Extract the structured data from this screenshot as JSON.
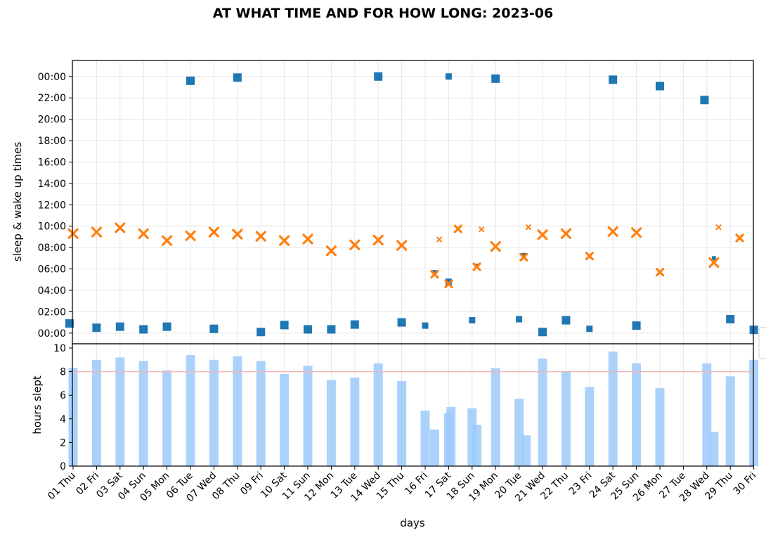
{
  "chart_data": {
    "title": "AT WHAT TIME AND FOR HOW LONG: 2023-06",
    "xlabel": "days",
    "x_categories": [
      "01 Thu",
      "02 Fri",
      "03 Sat",
      "04 Sun",
      "05 Mon",
      "06 Tue",
      "07 Wed",
      "08 Thu",
      "09 Fri",
      "10 Sat",
      "11 Sun",
      "12 Mon",
      "13 Tue",
      "14 Wed",
      "15 Thu",
      "16 Fri",
      "17 Sat",
      "18 Sun",
      "19 Mon",
      "20 Tue",
      "21 Wed",
      "22 Thu",
      "23 Fri",
      "24 Sat",
      "25 Sun",
      "26 Mon",
      "27 Tue",
      "28 Wed",
      "29 Thu",
      "30 Fri"
    ],
    "colors": {
      "sleep": "#1f77b4",
      "wake": "#ff7f0e",
      "bars": "#9ccafa",
      "bars_dark": "#6ab3f7",
      "target_line": "#f5b5b5",
      "grid": "#e6e6e6"
    },
    "top": {
      "type": "scatter",
      "ylabel": "sleep & wake up times",
      "yticks": [
        "00:00",
        "02:00",
        "04:00",
        "06:00",
        "08:00",
        "10:00",
        "12:00",
        "14:00",
        "16:00",
        "18:00",
        "20:00",
        "22:00",
        "00:00"
      ],
      "ylim_hours": [
        -1,
        25.5
      ],
      "grid": true,
      "sleep_points": [
        {
          "x": 0.85,
          "y": 0.9,
          "size": "large"
        },
        {
          "x": 2.0,
          "y": 0.5,
          "size": "large"
        },
        {
          "x": 3.0,
          "y": 0.6,
          "size": "large"
        },
        {
          "x": 4.0,
          "y": 0.35,
          "size": "large"
        },
        {
          "x": 5.0,
          "y": 0.6,
          "size": "large"
        },
        {
          "x": 6.0,
          "y": 23.6,
          "size": "large"
        },
        {
          "x": 7.0,
          "y": 0.4,
          "size": "large"
        },
        {
          "x": 8.0,
          "y": 23.9,
          "size": "large"
        },
        {
          "x": 9.0,
          "y": 0.1,
          "size": "large"
        },
        {
          "x": 10.0,
          "y": 0.75,
          "size": "large"
        },
        {
          "x": 11.0,
          "y": 0.35,
          "size": "large"
        },
        {
          "x": 12.0,
          "y": 0.35,
          "size": "large"
        },
        {
          "x": 13.0,
          "y": 0.8,
          "size": "large"
        },
        {
          "x": 14.0,
          "y": 24.0,
          "size": "large"
        },
        {
          "x": 15.0,
          "y": 1.0,
          "size": "large"
        },
        {
          "x": 16.0,
          "y": 0.7,
          "size": "medium"
        },
        {
          "x": 16.4,
          "y": 5.7,
          "size": "small"
        },
        {
          "x": 17.0,
          "y": 4.8,
          "size": "medium"
        },
        {
          "x": 17.0,
          "y": 24.0,
          "size": "medium"
        },
        {
          "x": 18.0,
          "y": 1.2,
          "size": "medium"
        },
        {
          "x": 18.2,
          "y": 6.3,
          "size": "small"
        },
        {
          "x": 19.0,
          "y": 23.8,
          "size": "large"
        },
        {
          "x": 20.0,
          "y": 1.3,
          "size": "medium"
        },
        {
          "x": 20.2,
          "y": 7.3,
          "size": "small"
        },
        {
          "x": 21.0,
          "y": 0.1,
          "size": "large"
        },
        {
          "x": 22.0,
          "y": 1.2,
          "size": "large"
        },
        {
          "x": 23.0,
          "y": 0.4,
          "size": "medium"
        },
        {
          "x": 24.0,
          "y": 23.7,
          "size": "large"
        },
        {
          "x": 25.0,
          "y": 0.7,
          "size": "large"
        },
        {
          "x": 26.0,
          "y": 23.1,
          "size": "large"
        },
        {
          "x": 27.9,
          "y": 21.8,
          "size": "large"
        },
        {
          "x": 28.3,
          "y": 7.0,
          "size": "small"
        },
        {
          "x": 29.0,
          "y": 1.3,
          "size": "large"
        },
        {
          "x": 30.0,
          "y": 0.3,
          "size": "large"
        }
      ],
      "wake_points": [
        {
          "x": 1.0,
          "y": 9.3,
          "size": "large"
        },
        {
          "x": 2.0,
          "y": 9.45,
          "size": "large"
        },
        {
          "x": 3.0,
          "y": 9.85,
          "size": "large"
        },
        {
          "x": 4.0,
          "y": 9.3,
          "size": "large"
        },
        {
          "x": 5.0,
          "y": 8.65,
          "size": "large"
        },
        {
          "x": 6.0,
          "y": 9.1,
          "size": "large"
        },
        {
          "x": 7.0,
          "y": 9.45,
          "size": "large"
        },
        {
          "x": 8.0,
          "y": 9.25,
          "size": "large"
        },
        {
          "x": 9.0,
          "y": 9.05,
          "size": "large"
        },
        {
          "x": 10.0,
          "y": 8.65,
          "size": "large"
        },
        {
          "x": 11.0,
          "y": 8.8,
          "size": "large"
        },
        {
          "x": 12.0,
          "y": 7.7,
          "size": "large"
        },
        {
          "x": 13.0,
          "y": 8.25,
          "size": "large"
        },
        {
          "x": 14.0,
          "y": 8.7,
          "size": "large"
        },
        {
          "x": 15.0,
          "y": 8.2,
          "size": "large"
        },
        {
          "x": 16.4,
          "y": 5.5,
          "size": "medium"
        },
        {
          "x": 16.6,
          "y": 8.75,
          "size": "small"
        },
        {
          "x": 17.0,
          "y": 4.6,
          "size": "medium"
        },
        {
          "x": 17.4,
          "y": 9.75,
          "size": "medium"
        },
        {
          "x": 18.2,
          "y": 6.2,
          "size": "medium"
        },
        {
          "x": 18.4,
          "y": 9.7,
          "size": "small"
        },
        {
          "x": 19.0,
          "y": 8.1,
          "size": "large"
        },
        {
          "x": 20.2,
          "y": 7.1,
          "size": "medium"
        },
        {
          "x": 20.4,
          "y": 9.9,
          "size": "small"
        },
        {
          "x": 21.0,
          "y": 9.2,
          "size": "large"
        },
        {
          "x": 22.0,
          "y": 9.3,
          "size": "large"
        },
        {
          "x": 23.0,
          "y": 7.2,
          "size": "medium"
        },
        {
          "x": 24.0,
          "y": 9.5,
          "size": "large"
        },
        {
          "x": 25.0,
          "y": 9.4,
          "size": "large"
        },
        {
          "x": 26.0,
          "y": 5.7,
          "size": "medium"
        },
        {
          "x": 28.3,
          "y": 6.6,
          "size": "large"
        },
        {
          "x": 28.5,
          "y": 9.9,
          "size": "small"
        },
        {
          "x": 29.4,
          "y": 8.9,
          "size": "medium"
        }
      ]
    },
    "bottom": {
      "type": "bar",
      "ylabel": "hours slept",
      "yticks": [
        "0",
        "2",
        "4",
        "6",
        "8",
        "10"
      ],
      "ylim": [
        0,
        10
      ],
      "target_line": 8,
      "bars": [
        {
          "x": 1.0,
          "h": 8.3
        },
        {
          "x": 2.0,
          "h": 9.0
        },
        {
          "x": 3.0,
          "h": 9.2
        },
        {
          "x": 4.0,
          "h": 8.9
        },
        {
          "x": 5.0,
          "h": 8.1
        },
        {
          "x": 6.0,
          "h": 9.4
        },
        {
          "x": 7.0,
          "h": 9.0
        },
        {
          "x": 8.0,
          "h": 9.3
        },
        {
          "x": 9.0,
          "h": 8.9
        },
        {
          "x": 10.0,
          "h": 7.8
        },
        {
          "x": 11.0,
          "h": 8.5
        },
        {
          "x": 12.0,
          "h": 7.3
        },
        {
          "x": 13.0,
          "h": 7.5
        },
        {
          "x": 14.0,
          "h": 8.7
        },
        {
          "x": 15.0,
          "h": 7.2
        },
        {
          "x": 16.0,
          "h": 4.7
        },
        {
          "x": 16.4,
          "h": 3.1
        },
        {
          "x": 17.0,
          "h": 4.5
        },
        {
          "x": 17.1,
          "h": 5.0
        },
        {
          "x": 18.0,
          "h": 4.9
        },
        {
          "x": 18.2,
          "h": 3.5
        },
        {
          "x": 19.0,
          "h": 8.3
        },
        {
          "x": 20.0,
          "h": 5.7
        },
        {
          "x": 20.3,
          "h": 2.6
        },
        {
          "x": 21.0,
          "h": 9.1
        },
        {
          "x": 22.0,
          "h": 8.0
        },
        {
          "x": 23.0,
          "h": 6.7
        },
        {
          "x": 24.0,
          "h": 9.7
        },
        {
          "x": 25.0,
          "h": 8.7
        },
        {
          "x": 26.0,
          "h": 6.6
        },
        {
          "x": 28.0,
          "h": 8.7
        },
        {
          "x": 28.3,
          "h": 2.9
        },
        {
          "x": 29.0,
          "h": 7.6
        },
        {
          "x": 30.0,
          "h": 9.0
        }
      ]
    }
  }
}
